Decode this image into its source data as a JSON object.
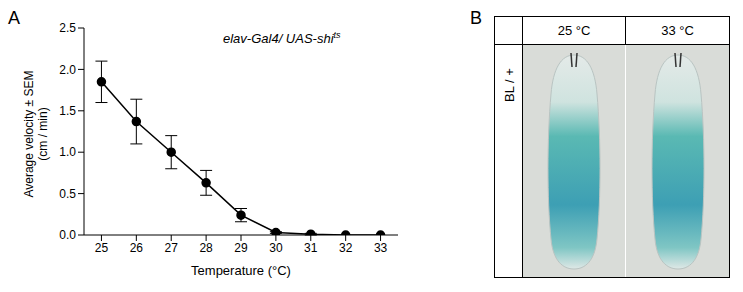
{
  "chart_data": {
    "type": "line",
    "annotation": {
      "text": "elav-Gal4/ UAS-shi",
      "superscript": "ts"
    },
    "x_label": "Temperature (°C)",
    "y_label": [
      "Average velocity ± SEM",
      "(cm / min)"
    ],
    "x": [
      25,
      26,
      27,
      28,
      29,
      30,
      31,
      32,
      33
    ],
    "values": [
      1.85,
      1.37,
      1.0,
      0.63,
      0.24,
      0.03,
      0.01,
      0.0,
      0.0
    ],
    "errors": [
      0.25,
      0.27,
      0.2,
      0.15,
      0.08,
      0.01,
      0.01,
      0.0,
      0.0
    ],
    "xlim": [
      24.5,
      33.5
    ],
    "xticks": [
      25,
      26,
      27,
      28,
      29,
      30,
      31,
      32,
      33
    ],
    "ylim": [
      0,
      2.5
    ],
    "yticks": [
      {
        "value": 0,
        "label": "0.0"
      },
      0.5,
      {
        "value": 1,
        "label": "1.0"
      },
      1.5,
      {
        "value": 2,
        "label": "2.0"
      },
      2.5
    ],
    "color": "#000000",
    "marker": "circle"
  },
  "panel_labels": [
    "A",
    "B"
  ],
  "panel_b": {
    "columns": [
      "25 °C",
      "33 °C"
    ],
    "row_label": "BL / +"
  }
}
